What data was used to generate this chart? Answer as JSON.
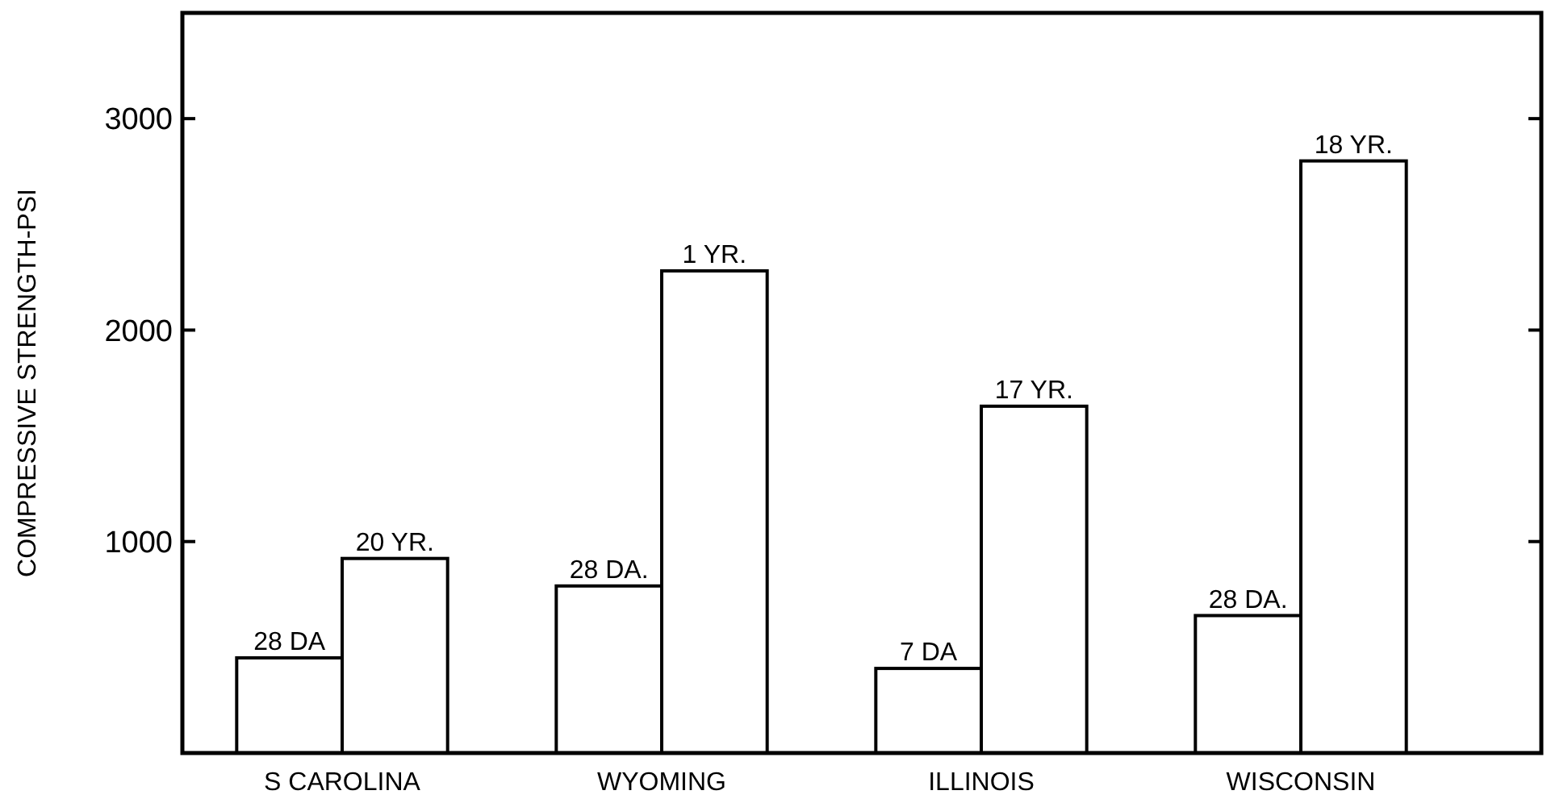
{
  "chart_data": {
    "type": "bar",
    "ylabel": "COMPRESSIVE STRENGTH-PSI",
    "categories": [
      "S CAROLINA",
      "WYOMING",
      "ILLINOIS",
      "WISCONSIN"
    ],
    "series": [
      {
        "color": "#ffffff",
        "values": [
          450,
          790,
          400,
          650
        ]
      },
      {
        "color": "#ffffff",
        "values": [
          920,
          2280,
          1640,
          2800
        ]
      }
    ],
    "annotations": [
      {
        "text": "28 DA",
        "x": "S CAROLINA",
        "y": 450
      },
      {
        "text": "20 YR.",
        "x": "S CAROLINA",
        "y": 920
      },
      {
        "text": "28 DA.",
        "x": "WYOMING",
        "y": 790
      },
      {
        "text": "1 YR.",
        "x": "WYOMING",
        "y": 2280
      },
      {
        "text": "7 DA",
        "x": "ILLINOIS",
        "y": 400
      },
      {
        "text": "17 YR.",
        "x": "ILLINOIS",
        "y": 1640
      },
      {
        "text": "28 DA.",
        "x": "WISCONSIN",
        "y": 650
      },
      {
        "text": "18 YR.",
        "x": "WISCONSIN",
        "y": 2800
      }
    ],
    "ylim": [
      0,
      3500
    ],
    "yticks": [
      1000,
      2000,
      3000
    ]
  }
}
